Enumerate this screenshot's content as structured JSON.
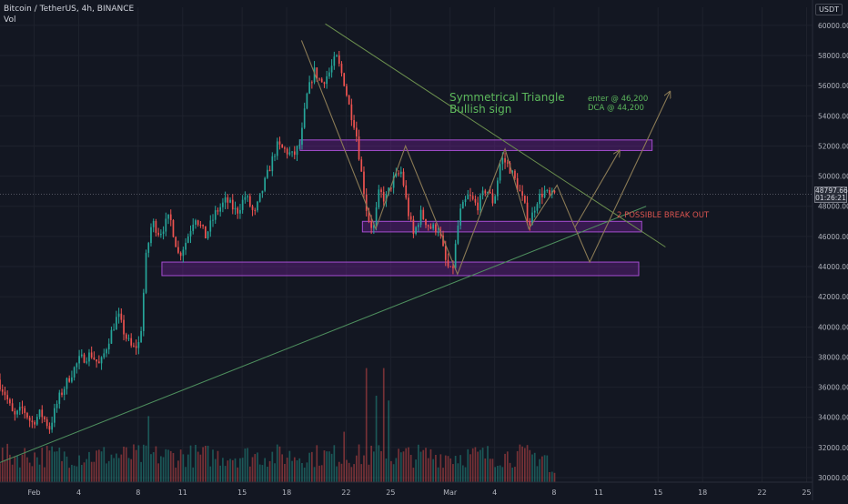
{
  "header": {
    "symbol_line": "Bitcoin / TetherUS, 4h, BINANCE",
    "indicator": "Vol",
    "currency_badge": "USDT"
  },
  "price_label": {
    "value": "48797.66",
    "countdown": "01:26:21"
  },
  "colors": {
    "background": "#131722",
    "grid": "#1e222d",
    "up": "#26a69a",
    "down": "#ef5350",
    "resistance_line": "#6b8f4e",
    "support_line": "#4e8f5e",
    "zone_fill": "#7b1fa2",
    "zone_border": "#a64dd1",
    "projection": "#8a7a55",
    "annotation_green": "#5cb85c",
    "annotation_red": "#d9534f"
  },
  "chart_data": {
    "type": "candlestick",
    "title": "",
    "x_tick_labels": [
      {
        "label": "Feb",
        "x": 0
      },
      {
        "label": "4",
        "x": 3
      },
      {
        "label": "8",
        "x": 7
      },
      {
        "label": "11",
        "x": 10
      },
      {
        "label": "15",
        "x": 14
      },
      {
        "label": "18",
        "x": 17
      },
      {
        "label": "22",
        "x": 21
      },
      {
        "label": "25",
        "x": 24
      },
      {
        "label": "Mar",
        "x": 28
      },
      {
        "label": "4",
        "x": 31
      },
      {
        "label": "8",
        "x": 35
      },
      {
        "label": "11",
        "x": 38
      },
      {
        "label": "15",
        "x": 42
      },
      {
        "label": "18",
        "x": 45
      },
      {
        "label": "22",
        "x": 49
      },
      {
        "label": "25",
        "x": 52
      }
    ],
    "x_range_days": [
      -2.3,
      52.4
    ],
    "y_tick_values": [
      30000,
      32000,
      34000,
      36000,
      38000,
      40000,
      42000,
      44000,
      46000,
      48000,
      50000,
      52000,
      54000,
      56000,
      58000,
      60000
    ],
    "y_tick_labels": [
      "30000.00",
      "32000.00",
      "34000.00",
      "36000.00",
      "38000.00",
      "40000.00",
      "42000.00",
      "44000.00",
      "46000.00",
      "48000.00",
      "50000.00",
      "52000.00",
      "54000.00",
      "56000.00",
      "58000.00",
      "60000.00"
    ],
    "ylim": [
      29700,
      61200
    ],
    "price_path": [
      {
        "day": -2.3,
        "price": 36500
      },
      {
        "day": -1.8,
        "price": 35600
      },
      {
        "day": -1.2,
        "price": 34000
      },
      {
        "day": -0.6,
        "price": 34600
      },
      {
        "day": 0.0,
        "price": 33600
      },
      {
        "day": 0.6,
        "price": 34300
      },
      {
        "day": 1.2,
        "price": 33300
      },
      {
        "day": 1.8,
        "price": 35200
      },
      {
        "day": 2.5,
        "price": 36600
      },
      {
        "day": 3.2,
        "price": 37800
      },
      {
        "day": 4.0,
        "price": 38200
      },
      {
        "day": 4.6,
        "price": 37400
      },
      {
        "day": 5.2,
        "price": 39200
      },
      {
        "day": 5.8,
        "price": 40800
      },
      {
        "day": 6.3,
        "price": 39400
      },
      {
        "day": 6.8,
        "price": 38500
      },
      {
        "day": 7.3,
        "price": 39000
      },
      {
        "day": 7.7,
        "price": 44600
      },
      {
        "day": 8.1,
        "price": 47000
      },
      {
        "day": 8.6,
        "price": 46200
      },
      {
        "day": 9.3,
        "price": 47300
      },
      {
        "day": 9.9,
        "price": 44700
      },
      {
        "day": 10.4,
        "price": 45700
      },
      {
        "day": 11.0,
        "price": 47400
      },
      {
        "day": 11.7,
        "price": 46000
      },
      {
        "day": 12.4,
        "price": 47600
      },
      {
        "day": 13.1,
        "price": 48400
      },
      {
        "day": 13.8,
        "price": 47600
      },
      {
        "day": 14.4,
        "price": 48700
      },
      {
        "day": 15.0,
        "price": 47400
      },
      {
        "day": 15.5,
        "price": 49000
      },
      {
        "day": 16.0,
        "price": 50500
      },
      {
        "day": 16.5,
        "price": 52000
      },
      {
        "day": 17.1,
        "price": 51700
      },
      {
        "day": 17.6,
        "price": 51300
      },
      {
        "day": 18.1,
        "price": 52200
      },
      {
        "day": 18.5,
        "price": 55200
      },
      {
        "day": 19.0,
        "price": 57000
      },
      {
        "day": 19.5,
        "price": 56200
      },
      {
        "day": 20.0,
        "price": 56800
      },
      {
        "day": 20.5,
        "price": 57900
      },
      {
        "day": 21.0,
        "price": 56400
      },
      {
        "day": 21.4,
        "price": 54500
      },
      {
        "day": 21.8,
        "price": 53200
      },
      {
        "day": 22.2,
        "price": 50200
      },
      {
        "day": 22.6,
        "price": 47400
      },
      {
        "day": 23.0,
        "price": 46400
      },
      {
        "day": 23.4,
        "price": 49000
      },
      {
        "day": 23.8,
        "price": 48400
      },
      {
        "day": 24.3,
        "price": 49700
      },
      {
        "day": 24.9,
        "price": 50300
      },
      {
        "day": 25.3,
        "price": 47800
      },
      {
        "day": 25.7,
        "price": 46100
      },
      {
        "day": 26.2,
        "price": 47500
      },
      {
        "day": 26.8,
        "price": 46600
      },
      {
        "day": 27.4,
        "price": 46500
      },
      {
        "day": 27.9,
        "price": 44200
      },
      {
        "day": 28.3,
        "price": 43500
      },
      {
        "day": 28.8,
        "price": 47500
      },
      {
        "day": 29.4,
        "price": 48700
      },
      {
        "day": 30.0,
        "price": 48000
      },
      {
        "day": 30.6,
        "price": 49200
      },
      {
        "day": 31.1,
        "price": 48200
      },
      {
        "day": 31.6,
        "price": 51200
      },
      {
        "day": 32.1,
        "price": 50700
      },
      {
        "day": 32.6,
        "price": 49600
      },
      {
        "day": 33.1,
        "price": 48300
      },
      {
        "day": 33.5,
        "price": 46800
      },
      {
        "day": 34.0,
        "price": 48400
      },
      {
        "day": 34.5,
        "price": 49000
      },
      {
        "day": 34.9,
        "price": 48600
      },
      {
        "day": 35.2,
        "price": 48800
      }
    ],
    "volume_scale": "relative (0-1)",
    "spike_volumes": [
      {
        "day": 7.7,
        "volume": 0.55
      },
      {
        "day": 20.9,
        "volume": 0.42
      },
      {
        "day": 22.4,
        "volume": 0.95
      },
      {
        "day": 23.0,
        "volume": 0.72
      },
      {
        "day": 23.5,
        "volume": 0.95
      },
      {
        "day": 23.9,
        "volume": 0.68
      }
    ],
    "annotations": {
      "pattern_title": "Symmetrical Triangle",
      "pattern_subtitle": "Bullish sign",
      "entry_note": "enter @ 46,200",
      "dca_note": "DCA @ 44,200",
      "breakout_note": "2 POSSIBLE BREAK OUT"
    },
    "trendlines": [
      {
        "name": "upper-resistance",
        "from": {
          "day": 19.6,
          "price": 60100
        },
        "to": {
          "day": 42.5,
          "price": 45300
        }
      },
      {
        "name": "lower-support",
        "from": {
          "day": -2.3,
          "price": 31000
        },
        "to": {
          "day": 41.2,
          "price": 48000
        }
      }
    ],
    "zones": [
      {
        "name": "resistance-zone",
        "x_from_day": 17.9,
        "x_to_day": 41.6,
        "price_top": 52400,
        "price_bottom": 51700
      },
      {
        "name": "mid-zone",
        "x_from_day": 22.1,
        "x_to_day": 40.9,
        "price_top": 47000,
        "price_bottom": 46300
      },
      {
        "name": "support-zone",
        "x_from_day": 8.6,
        "x_to_day": 40.7,
        "price_top": 44300,
        "price_bottom": 43400
      }
    ],
    "projection_paths": [
      {
        "name": "zigzag-history",
        "points": [
          {
            "day": 18.0,
            "price": 59000
          },
          {
            "day": 23.0,
            "price": 46500
          },
          {
            "day": 25.0,
            "price": 52000
          },
          {
            "day": 28.5,
            "price": 43500
          },
          {
            "day": 31.7,
            "price": 51800
          },
          {
            "day": 33.3,
            "price": 46500
          },
          {
            "day": 35.2,
            "price": 49400
          },
          {
            "day": 36.4,
            "price": 46600
          }
        ]
      },
      {
        "name": "breakout-up",
        "points": [
          {
            "day": 36.4,
            "price": 46600
          },
          {
            "day": 39.4,
            "price": 51700
          }
        ]
      },
      {
        "name": "breakout-retest",
        "points": [
          {
            "day": 36.4,
            "price": 46600
          },
          {
            "day": 37.4,
            "price": 44300
          },
          {
            "day": 42.8,
            "price": 55600
          }
        ]
      }
    ]
  }
}
